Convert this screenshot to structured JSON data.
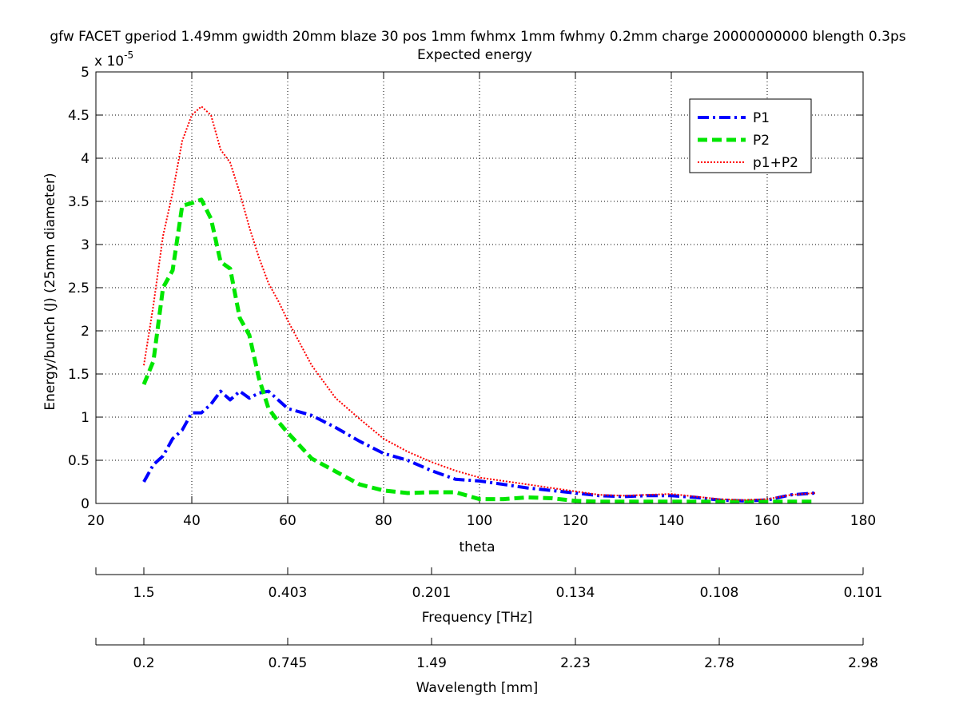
{
  "chart_data": {
    "type": "line",
    "title": "gfw FACET gperiod 1.49mm gwidth 20mm blaze 30 pos 1mm fwhmx 1mm fwhmy 0.2mm charge 20000000000 blength 0.3ps",
    "subtitle": "Expected energy",
    "xlabel": "theta",
    "ylabel": "Energy/bunch (J) (25mm diameter)",
    "y_multiplier": {
      "base": "x 10",
      "exponent": "-5"
    },
    "xlim": [
      20,
      180
    ],
    "ylim": [
      0,
      5
    ],
    "x_ticks": [
      "20",
      "40",
      "60",
      "80",
      "100",
      "120",
      "140",
      "160",
      "180"
    ],
    "y_ticks": [
      "0",
      "0.5",
      "1",
      "1.5",
      "2",
      "2.5",
      "3",
      "3.5",
      "4",
      "4.5",
      "5"
    ],
    "grid": true,
    "legend_position": "top-right",
    "colors": {
      "P1": "#0000ff",
      "P2": "#00e600",
      "p1+P2": "#ff0000"
    },
    "series": [
      {
        "name": "P1",
        "style": "dash-dot",
        "x": [
          30,
          32,
          34,
          36,
          38,
          40,
          42,
          44,
          46,
          48,
          50,
          52,
          54,
          56,
          58,
          60,
          65,
          70,
          75,
          80,
          85,
          90,
          95,
          100,
          105,
          110,
          115,
          120,
          125,
          130,
          135,
          140,
          145,
          150,
          155,
          160,
          165,
          170
        ],
        "y": [
          0.25,
          0.45,
          0.55,
          0.75,
          0.85,
          1.05,
          1.05,
          1.15,
          1.3,
          1.2,
          1.3,
          1.22,
          1.28,
          1.3,
          1.2,
          1.1,
          1.02,
          0.88,
          0.72,
          0.58,
          0.5,
          0.38,
          0.28,
          0.26,
          0.22,
          0.18,
          0.15,
          0.12,
          0.09,
          0.08,
          0.09,
          0.09,
          0.07,
          0.04,
          0.03,
          0.04,
          0.1,
          0.12
        ]
      },
      {
        "name": "P2",
        "style": "dashed",
        "x": [
          30,
          32,
          34,
          36,
          38,
          40,
          42,
          44,
          46,
          48,
          50,
          52,
          54,
          56,
          58,
          60,
          65,
          70,
          75,
          80,
          85,
          90,
          95,
          100,
          105,
          110,
          115,
          120,
          125,
          130,
          135,
          140,
          145,
          150,
          155,
          160,
          165,
          170
        ],
        "y": [
          1.38,
          1.65,
          2.5,
          2.7,
          3.45,
          3.48,
          3.52,
          3.3,
          2.8,
          2.72,
          2.15,
          1.95,
          1.45,
          1.1,
          0.95,
          0.82,
          0.52,
          0.37,
          0.22,
          0.15,
          0.12,
          0.13,
          0.13,
          0.05,
          0.05,
          0.07,
          0.06,
          0.03,
          0.02,
          0.02,
          0.02,
          0.02,
          0.02,
          0.02,
          0.02,
          0.02,
          0.02,
          0.02
        ]
      },
      {
        "name": "p1+P2",
        "style": "dotted",
        "x": [
          30,
          32,
          34,
          36,
          38,
          40,
          42,
          44,
          46,
          48,
          50,
          52,
          54,
          56,
          58,
          60,
          65,
          70,
          75,
          80,
          85,
          90,
          95,
          100,
          105,
          110,
          115,
          120,
          125,
          130,
          135,
          140,
          145,
          150,
          155,
          160,
          165,
          170
        ],
        "y": [
          1.6,
          2.3,
          3.1,
          3.6,
          4.2,
          4.5,
          4.6,
          4.5,
          4.1,
          3.95,
          3.6,
          3.2,
          2.85,
          2.55,
          2.35,
          2.12,
          1.6,
          1.22,
          0.98,
          0.75,
          0.6,
          0.48,
          0.38,
          0.3,
          0.26,
          0.22,
          0.18,
          0.14,
          0.1,
          0.09,
          0.1,
          0.11,
          0.08,
          0.05,
          0.04,
          0.05,
          0.1,
          0.12
        ]
      }
    ],
    "secondary_axes": [
      {
        "label": "Frequency [THz]",
        "ticks": [
          "1.5",
          "0.403",
          "0.201",
          "0.134",
          "0.108",
          "0.101"
        ]
      },
      {
        "label": "Wavelength [mm]",
        "ticks": [
          "0.2",
          "0.745",
          "1.49",
          "2.23",
          "2.78",
          "2.98"
        ]
      }
    ]
  }
}
